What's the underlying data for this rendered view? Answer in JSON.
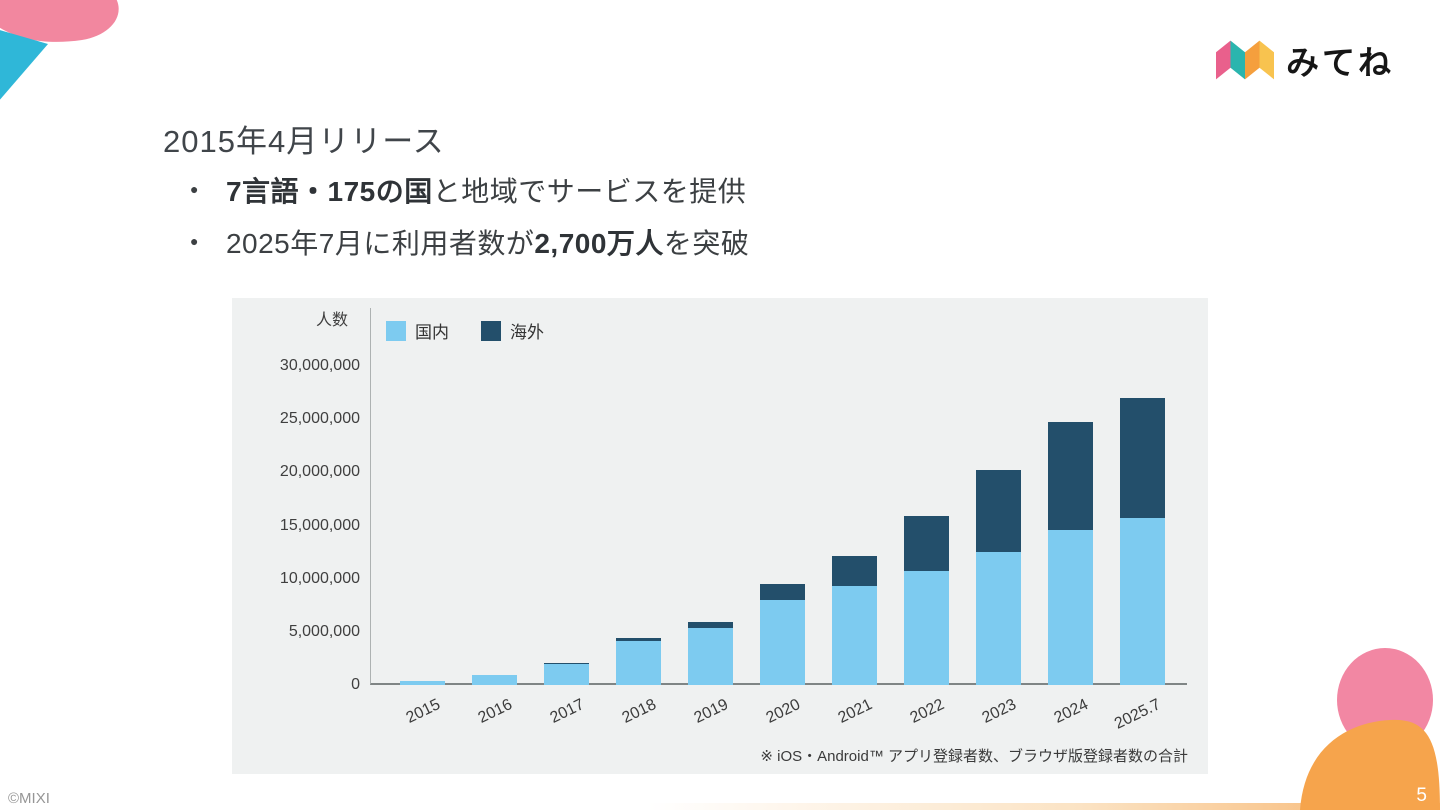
{
  "logo": {
    "icon": "mitene-mark",
    "text": "みてね"
  },
  "title": "2015年4月リリース",
  "bullets": [
    {
      "pre": "",
      "bold": "7言語・175の国",
      "rest": "と地域でサービスを提供"
    },
    {
      "pre": "2025年7月に利用者数が",
      "bold": "2,700万人",
      "rest": "を突破"
    }
  ],
  "chart_data": {
    "type": "bar",
    "stacked": true,
    "title": "",
    "ylabel": "人数",
    "xlabel": "",
    "categories": [
      "2015",
      "2016",
      "2017",
      "2018",
      "2019",
      "2020",
      "2021",
      "2022",
      "2023",
      "2024",
      "2025.7"
    ],
    "series": [
      {
        "name": "国内",
        "color": "#7DCBF0",
        "values": [
          350000,
          900000,
          1950000,
          4100000,
          5400000,
          8000000,
          9300000,
          10700000,
          12500000,
          14600000,
          15700000
        ]
      },
      {
        "name": "海外",
        "color": "#234F6B",
        "values": [
          0,
          0,
          100000,
          300000,
          500000,
          1500000,
          2800000,
          5200000,
          7700000,
          10100000,
          11300000
        ]
      }
    ],
    "ylim": [
      0,
      30000000
    ],
    "yticks": [
      0,
      5000000,
      10000000,
      15000000,
      20000000,
      25000000,
      30000000
    ],
    "grid": false,
    "legend_position": "top-left",
    "note": "※ iOS・Android™ アプリ登録者数、ブラウザ版登録者数の合計"
  },
  "footer": {
    "copyright": "©MIXI",
    "page_number": "5"
  },
  "colors": {
    "domestic": "#7DCBF0",
    "overseas": "#234F6B",
    "accent_pink": "#F2879F",
    "accent_cyan": "#2FB7D8",
    "accent_orange": "#F6A44C",
    "chart_bg": "#EFF1F1"
  }
}
